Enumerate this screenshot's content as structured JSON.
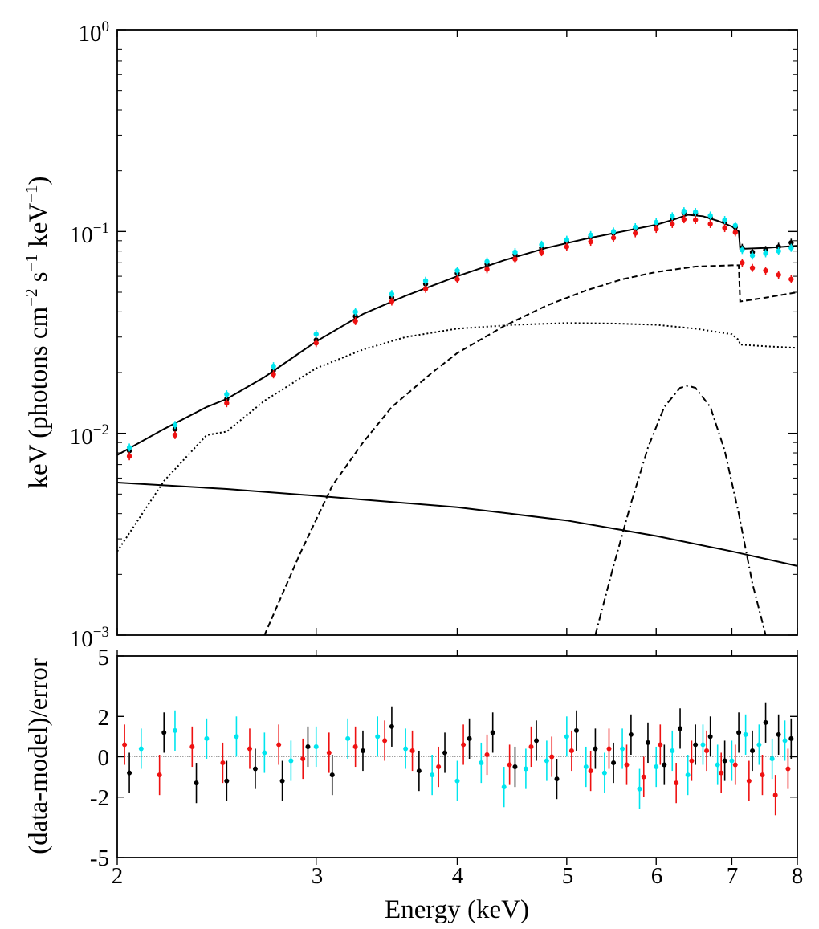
{
  "chart_data": [
    {
      "panel": "spectrum",
      "type": "scatter+line",
      "x_scale": "log",
      "y_scale": "log",
      "xlim": [
        2,
        8
      ],
      "ylim": [
        0.001,
        1
      ],
      "ylabel": "keV (photons cm⁻² s⁻¹ keV⁻¹)",
      "ylabel_parts": {
        "a": "keV (photons cm",
        "e1": "−2",
        "b": " s",
        "e2": "−1",
        "c": " keV",
        "e3": "−1",
        "d": ")"
      },
      "y_ticks": [
        {
          "value": 1,
          "base": "10",
          "exp": "0"
        },
        {
          "value": 0.1,
          "base": "10",
          "exp": "−1"
        },
        {
          "value": 0.01,
          "base": "10",
          "exp": "−2"
        },
        {
          "value": 0.001,
          "base": "10",
          "exp": "−3"
        }
      ],
      "series": [
        {
          "name": "data-black",
          "color": "#000000",
          "style": "points",
          "x": [
            2.05,
            2.25,
            2.5,
            2.75,
            3.0,
            3.25,
            3.5,
            3.75,
            4.0,
            4.25,
            4.5,
            4.75,
            5.0,
            5.25,
            5.5,
            5.75,
            6.0,
            6.2,
            6.35,
            6.5,
            6.7,
            6.9,
            7.05,
            7.15,
            7.3,
            7.5,
            7.7,
            7.9
          ],
          "y": [
            0.0082,
            0.0105,
            0.0148,
            0.0205,
            0.029,
            0.038,
            0.047,
            0.055,
            0.062,
            0.069,
            0.077,
            0.083,
            0.089,
            0.094,
            0.098,
            0.103,
            0.108,
            0.116,
            0.124,
            0.123,
            0.118,
            0.112,
            0.105,
            0.083,
            0.079,
            0.081,
            0.084,
            0.088
          ]
        },
        {
          "name": "data-cyan",
          "color": "#00e5ee",
          "style": "points",
          "x": [
            2.05,
            2.25,
            2.5,
            2.75,
            3.0,
            3.25,
            3.5,
            3.75,
            4.0,
            4.25,
            4.5,
            4.75,
            5.0,
            5.25,
            5.5,
            5.75,
            6.0,
            6.2,
            6.35,
            6.5,
            6.7,
            6.9,
            7.05,
            7.15,
            7.3,
            7.5,
            7.7,
            7.9
          ],
          "y": [
            0.0085,
            0.011,
            0.0156,
            0.0215,
            0.031,
            0.04,
            0.049,
            0.057,
            0.064,
            0.071,
            0.079,
            0.086,
            0.091,
            0.096,
            0.1,
            0.105,
            0.111,
            0.119,
            0.126,
            0.125,
            0.12,
            0.114,
            0.107,
            0.081,
            0.076,
            0.078,
            0.08,
            0.083
          ]
        },
        {
          "name": "data-red",
          "color": "#ee1111",
          "style": "points",
          "x": [
            2.05,
            2.25,
            2.5,
            2.75,
            3.0,
            3.25,
            3.5,
            3.75,
            4.0,
            4.25,
            4.5,
            4.75,
            5.0,
            5.25,
            5.5,
            5.75,
            6.0,
            6.2,
            6.35,
            6.5,
            6.7,
            6.9,
            7.05,
            7.15,
            7.3,
            7.5,
            7.7,
            7.9
          ],
          "y": [
            0.0077,
            0.0098,
            0.0141,
            0.0196,
            0.028,
            0.036,
            0.045,
            0.052,
            0.058,
            0.065,
            0.073,
            0.079,
            0.084,
            0.089,
            0.093,
            0.098,
            0.103,
            0.109,
            0.115,
            0.114,
            0.109,
            0.104,
            0.099,
            0.07,
            0.066,
            0.064,
            0.061,
            0.058
          ]
        },
        {
          "name": "total-model",
          "color": "#000000",
          "style": "solid",
          "x": [
            2.0,
            2.2,
            2.4,
            2.5,
            2.7,
            3.0,
            3.3,
            3.6,
            4.0,
            4.4,
            4.8,
            5.2,
            5.6,
            6.0,
            6.2,
            6.4,
            6.6,
            6.8,
            7.0,
            7.1,
            7.12,
            7.5,
            8.0
          ],
          "y": [
            0.0078,
            0.0105,
            0.0135,
            0.0148,
            0.019,
            0.0285,
            0.039,
            0.048,
            0.06,
            0.072,
            0.083,
            0.092,
            0.1,
            0.108,
            0.114,
            0.121,
            0.119,
            0.113,
            0.106,
            0.1,
            0.082,
            0.083,
            0.085
          ]
        },
        {
          "name": "powerlaw-component",
          "color": "#000000",
          "style": "solid",
          "x": [
            2.0,
            2.5,
            3.0,
            4.0,
            5.0,
            6.0,
            7.0,
            8.0
          ],
          "y": [
            0.0057,
            0.0053,
            0.0049,
            0.0043,
            0.0037,
            0.0031,
            0.0026,
            0.0022
          ]
        },
        {
          "name": "dotted-component",
          "color": "#000000",
          "style": "dotted",
          "x": [
            2.0,
            2.2,
            2.4,
            2.5,
            2.7,
            3.0,
            3.3,
            3.6,
            4.0,
            4.5,
            5.0,
            5.5,
            6.0,
            6.5,
            7.0,
            7.1,
            7.12,
            7.5,
            8.0
          ],
          "y": [
            0.0026,
            0.0058,
            0.0098,
            0.0102,
            0.0145,
            0.021,
            0.026,
            0.03,
            0.033,
            0.0345,
            0.0352,
            0.035,
            0.0345,
            0.033,
            0.031,
            0.029,
            0.0275,
            0.027,
            0.0265
          ]
        },
        {
          "name": "dashed-component",
          "color": "#000000",
          "style": "dashed",
          "x": [
            2.7,
            2.9,
            3.1,
            3.3,
            3.5,
            3.8,
            4.0,
            4.4,
            4.8,
            5.2,
            5.6,
            6.0,
            6.5,
            7.0,
            7.1,
            7.12,
            7.5,
            8.0
          ],
          "y": [
            0.001,
            0.0025,
            0.0055,
            0.009,
            0.0135,
            0.02,
            0.025,
            0.034,
            0.043,
            0.051,
            0.058,
            0.063,
            0.067,
            0.068,
            0.068,
            0.045,
            0.047,
            0.05
          ]
        },
        {
          "name": "dashdot-component",
          "color": "#000000",
          "style": "dashdot",
          "x": [
            5.3,
            5.5,
            5.7,
            5.9,
            6.1,
            6.3,
            6.4,
            6.5,
            6.7,
            6.9,
            7.1,
            7.3,
            7.5
          ],
          "y": [
            0.001,
            0.0022,
            0.0045,
            0.0085,
            0.0135,
            0.0168,
            0.0172,
            0.0168,
            0.0135,
            0.0082,
            0.004,
            0.0018,
            0.001
          ]
        }
      ]
    },
    {
      "panel": "residuals",
      "type": "scatter",
      "x_scale": "log",
      "xlim": [
        2,
        8
      ],
      "ylim": [
        -5,
        5
      ],
      "xlabel": "Energy (keV)",
      "ylabel": "(data-model)/error",
      "x_ticks": [
        "2",
        "3",
        "4",
        "5",
        "6",
        "7",
        "8"
      ],
      "y_ticks": [
        "5",
        "2",
        "0",
        "-2",
        "-5"
      ],
      "series": [
        {
          "name": "resid-black",
          "color": "#000000",
          "x": [
            2.05,
            2.2,
            2.35,
            2.5,
            2.65,
            2.8,
            2.95,
            3.1,
            3.3,
            3.5,
            3.7,
            3.9,
            4.1,
            4.3,
            4.5,
            4.7,
            4.9,
            5.1,
            5.3,
            5.5,
            5.7,
            5.9,
            6.1,
            6.3,
            6.5,
            6.7,
            6.9,
            7.1,
            7.3,
            7.5,
            7.7,
            7.9
          ],
          "y": [
            -0.8,
            1.2,
            -1.3,
            -1.2,
            -0.6,
            -1.2,
            0.5,
            -0.9,
            0.3,
            1.5,
            -0.7,
            0.2,
            0.9,
            1.2,
            -0.5,
            0.8,
            -1.1,
            1.3,
            0.4,
            -0.3,
            1.1,
            0.7,
            -0.4,
            1.4,
            0.6,
            1.0,
            -0.2,
            1.2,
            0.3,
            1.7,
            1.1,
            0.9
          ]
        },
        {
          "name": "resid-cyan",
          "color": "#00e5ee",
          "x": [
            2.1,
            2.25,
            2.4,
            2.55,
            2.7,
            2.85,
            3.0,
            3.2,
            3.4,
            3.6,
            3.8,
            4.0,
            4.2,
            4.4,
            4.6,
            4.8,
            5.0,
            5.2,
            5.4,
            5.6,
            5.8,
            6.0,
            6.2,
            6.4,
            6.6,
            6.8,
            7.0,
            7.2,
            7.4,
            7.6,
            7.8
          ],
          "y": [
            0.4,
            1.3,
            0.9,
            1.0,
            0.2,
            -0.2,
            0.5,
            0.9,
            1.0,
            0.4,
            -0.9,
            -1.2,
            -0.3,
            -1.5,
            -0.6,
            -0.2,
            1.0,
            -0.5,
            -0.8,
            0.4,
            -1.6,
            -0.5,
            0.3,
            -0.9,
            0.6,
            -0.4,
            -0.2,
            1.1,
            0.6,
            -0.1,
            0.8
          ]
        },
        {
          "name": "resid-red",
          "color": "#ee1111",
          "x": [
            2.03,
            2.18,
            2.33,
            2.48,
            2.62,
            2.78,
            2.92,
            3.08,
            3.25,
            3.45,
            3.65,
            3.85,
            4.05,
            4.25,
            4.45,
            4.65,
            4.85,
            5.05,
            5.25,
            5.45,
            5.65,
            5.85,
            6.05,
            6.25,
            6.45,
            6.65,
            6.85,
            7.05,
            7.25,
            7.45,
            7.65,
            7.85
          ],
          "y": [
            0.6,
            -0.9,
            0.5,
            -0.3,
            0.4,
            0.6,
            -0.1,
            0.2,
            0.5,
            0.8,
            0.3,
            -0.5,
            0.6,
            0.1,
            -0.4,
            0.5,
            0.0,
            0.3,
            -0.7,
            0.4,
            -0.4,
            -1.0,
            0.6,
            -1.3,
            -0.2,
            0.3,
            -0.8,
            -0.4,
            -1.2,
            -0.9,
            -1.9,
            -0.6
          ]
        }
      ]
    }
  ]
}
